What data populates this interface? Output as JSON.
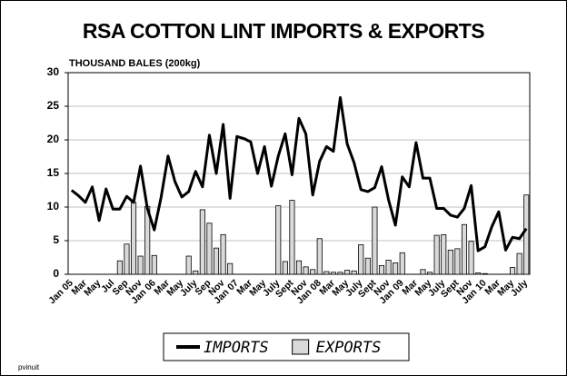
{
  "chart_data": {
    "type": "bar",
    "title": "RSA COTTON LINT IMPORTS & EXPORTS",
    "y_label": "THOUSAND BALES (200kg)",
    "footnote": "pvinuit",
    "categories": [
      "Jan 05",
      null,
      "Mar",
      null,
      "May",
      null,
      "Jul",
      null,
      "Sep",
      null,
      "Nov",
      null,
      "Jan 06",
      null,
      "Mar",
      null,
      "May",
      null,
      "July",
      null,
      "Sep",
      null,
      "Nov",
      null,
      "Jan 07",
      null,
      "Mar",
      null,
      "May",
      null,
      "July",
      null,
      "Sept",
      null,
      "Nov",
      null,
      "Jan 08",
      null,
      "Mar",
      null,
      "May",
      null,
      "July",
      null,
      "Sept",
      null,
      "Nov",
      null,
      "Jan 09",
      null,
      "Mar",
      null,
      "May",
      null,
      "July",
      null,
      "Sept",
      null,
      "Nov",
      null,
      "Jan 10",
      null,
      "Mar",
      null,
      "May",
      null,
      "July"
    ],
    "series": [
      {
        "name": "IMPORTS",
        "type": "line",
        "color": "#000000",
        "values": [
          12.5,
          11.7,
          10.7,
          13,
          8,
          12.7,
          9.7,
          9.7,
          11.6,
          10.7,
          16.1,
          9.8,
          6.6,
          11.5,
          17.6,
          13.8,
          11.5,
          12.3,
          15.3,
          13,
          20.7,
          15,
          22.3,
          11.3,
          20.5,
          20.2,
          19.7,
          15,
          19,
          13.1,
          17.6,
          20.9,
          14.8,
          23.2,
          20.9,
          11.8,
          16.8,
          19,
          18.3,
          26.3,
          19.4,
          16.6,
          12.6,
          12.3,
          12.9,
          16,
          11.1,
          7.3,
          14.5,
          13,
          19.6,
          14.3,
          14.3,
          9.8,
          9.8,
          8.8,
          8.5,
          9.8,
          13.2,
          3.5,
          4.1,
          7.1,
          9.3,
          3.6,
          5.5,
          5.3,
          6.8
        ]
      },
      {
        "name": "EXPORTS",
        "type": "bar",
        "color": "#d9d9d9",
        "values": [
          0,
          0,
          0,
          0,
          0,
          0,
          0,
          2,
          4.5,
          10.7,
          2.7,
          10.1,
          2.8,
          0,
          0,
          0,
          0,
          2.7,
          0.5,
          9.6,
          7.6,
          3.9,
          5.9,
          1.6,
          0,
          0,
          0,
          0,
          0,
          0,
          10.2,
          1.9,
          11,
          2,
          1.1,
          0.7,
          5.3,
          0.4,
          0.3,
          0.3,
          0.6,
          0.5,
          4.4,
          2.4,
          10,
          1.3,
          2.1,
          1.7,
          3.2,
          0,
          0,
          0.7,
          0.3,
          5.8,
          5.9,
          3.6,
          3.8,
          7.4,
          4.9,
          0.2,
          0.1,
          0,
          0,
          0,
          1,
          3.1,
          11.8
        ]
      }
    ],
    "ylim": [
      0,
      30
    ],
    "yticks": [
      0,
      5,
      10,
      15,
      20,
      25,
      30
    ],
    "grid": true,
    "legend": "bottom"
  }
}
